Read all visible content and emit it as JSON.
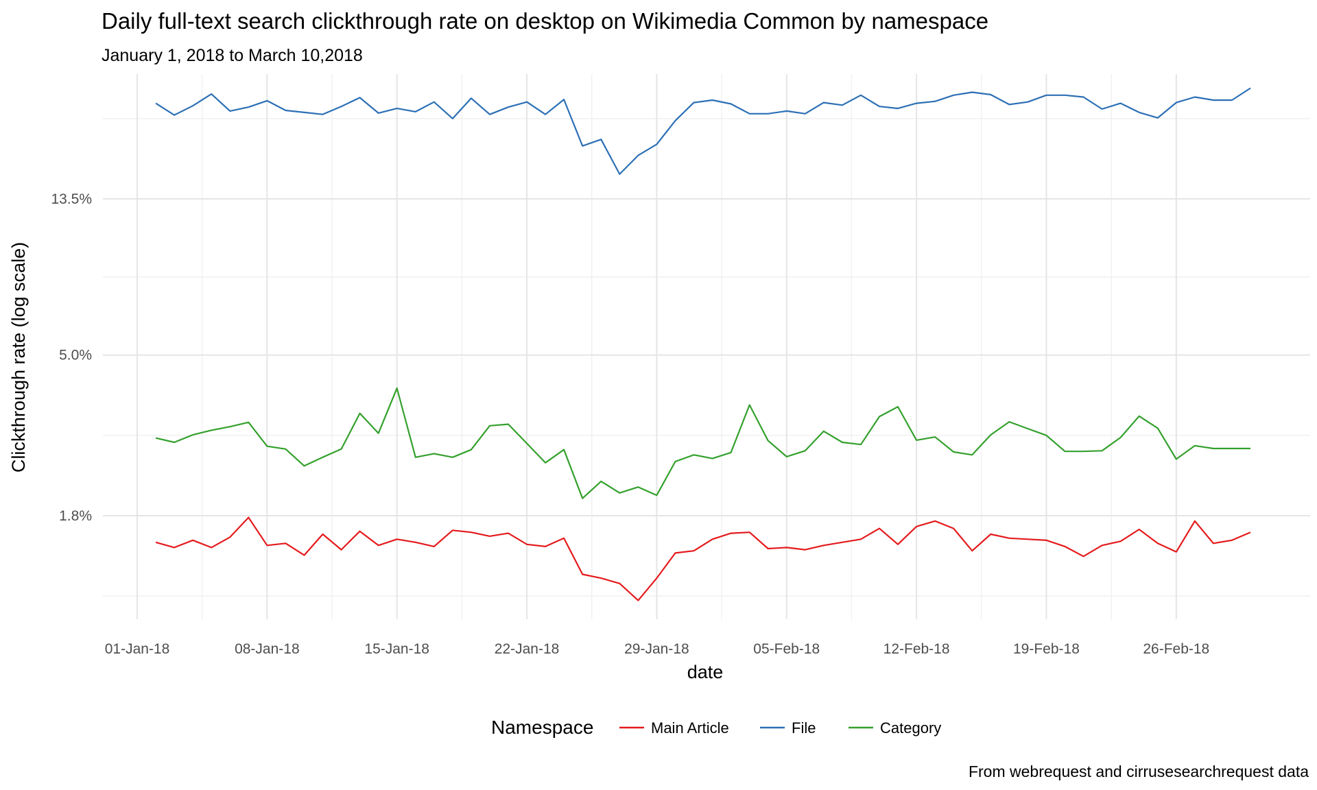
{
  "chart_data": {
    "type": "line",
    "title": "Daily full-text search clickthrough rate on desktop on Wikimedia Common by namespace",
    "subtitle": "January 1, 2018 to March 10,2018",
    "xlabel": "date",
    "ylabel": "Clickthrough rate (log scale)",
    "caption": "From webrequest and cirrusesearchrequest data",
    "y_scale": "log",
    "y_ticks": [
      {
        "value": 1.8,
        "label": "1.8%"
      },
      {
        "value": 5.0,
        "label": "5.0%"
      },
      {
        "value": 13.5,
        "label": "13.5%"
      }
    ],
    "x_ticks": [
      "01-Jan-18",
      "08-Jan-18",
      "15-Jan-18",
      "22-Jan-18",
      "29-Jan-18",
      "05-Feb-18",
      "12-Feb-18",
      "19-Feb-18",
      "26-Feb-18"
    ],
    "x_start": "2018-01-02",
    "legend": {
      "title": "Namespace",
      "position": "bottom"
    },
    "grid": true,
    "series": [
      {
        "name": "Main Article",
        "color": "#e41a1c",
        "values": [
          1.52,
          1.47,
          1.54,
          1.47,
          1.57,
          1.78,
          1.49,
          1.51,
          1.4,
          1.6,
          1.45,
          1.63,
          1.49,
          1.55,
          1.52,
          1.48,
          1.64,
          1.62,
          1.58,
          1.61,
          1.5,
          1.48,
          1.56,
          1.24,
          1.21,
          1.17,
          1.05,
          1.21,
          1.42,
          1.44,
          1.55,
          1.61,
          1.62,
          1.46,
          1.47,
          1.45,
          1.49,
          1.52,
          1.55,
          1.66,
          1.5,
          1.68,
          1.74,
          1.66,
          1.44,
          1.6,
          1.56,
          1.55,
          1.54,
          1.48,
          1.39,
          1.49,
          1.53,
          1.65,
          1.51,
          1.43,
          1.74,
          1.51,
          1.54,
          1.62
        ]
      },
      {
        "name": "File",
        "color": "#2c6fb5",
        "values": [
          24.8,
          23.0,
          24.4,
          26.3,
          23.6,
          24.2,
          25.2,
          23.7,
          23.4,
          23.1,
          24.3,
          25.7,
          23.3,
          24.0,
          23.5,
          25.0,
          22.5,
          25.6,
          23.1,
          24.2,
          25.0,
          23.1,
          25.4,
          18.9,
          19.7,
          15.8,
          17.8,
          19.1,
          22.2,
          24.9,
          25.3,
          24.7,
          23.2,
          23.2,
          23.6,
          23.2,
          24.9,
          24.5,
          26.1,
          24.3,
          24.0,
          24.8,
          25.1,
          26.1,
          26.6,
          26.2,
          24.6,
          25.0,
          26.1,
          26.1,
          25.8,
          23.9,
          24.8,
          23.4,
          22.6,
          24.9,
          25.8,
          25.3,
          25.3,
          27.3
        ]
      },
      {
        "name": "Category",
        "color": "#33a02c",
        "values": [
          2.95,
          2.87,
          3.01,
          3.1,
          3.17,
          3.26,
          2.8,
          2.75,
          2.47,
          2.61,
          2.75,
          3.45,
          3.04,
          4.05,
          2.61,
          2.67,
          2.61,
          2.74,
          3.19,
          3.22,
          2.85,
          2.52,
          2.74,
          2.01,
          2.24,
          2.08,
          2.16,
          2.05,
          2.54,
          2.65,
          2.59,
          2.69,
          3.64,
          2.9,
          2.62,
          2.72,
          3.08,
          2.87,
          2.83,
          3.38,
          3.6,
          2.91,
          2.97,
          2.7,
          2.65,
          3.01,
          3.27,
          3.13,
          3.0,
          2.71,
          2.71,
          2.72,
          2.96,
          3.39,
          3.14,
          2.58,
          2.81,
          2.76,
          2.76,
          2.76
        ]
      }
    ]
  }
}
